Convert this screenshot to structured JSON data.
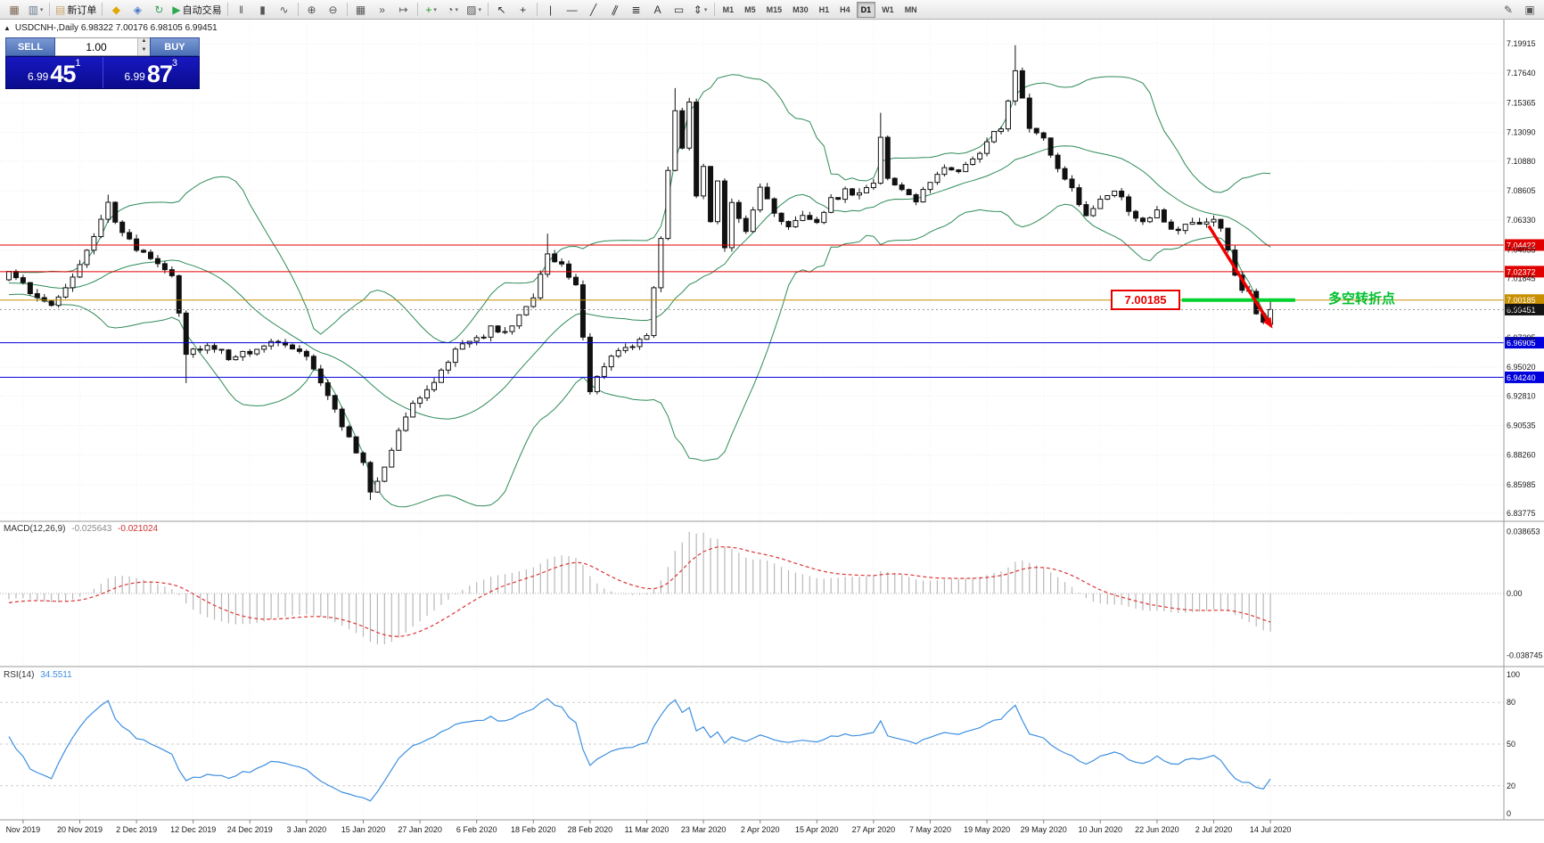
{
  "toolbar": {
    "items": [
      {
        "name": "new-chart-icon",
        "glyph": "▦",
        "color": "#7a6450"
      },
      {
        "name": "profiles-icon",
        "glyph": "▥",
        "color": "#6a7a8a",
        "caret": true
      },
      {
        "sep": true
      },
      {
        "name": "new-order-button",
        "glyph": "▤",
        "color": "#caa46a",
        "label": "新订单"
      },
      {
        "sep": true
      },
      {
        "name": "metaeditor-icon",
        "glyph": "◆",
        "color": "#e0a800"
      },
      {
        "name": "options-icon",
        "glyph": "◈",
        "color": "#4878c8"
      },
      {
        "name": "refresh-icon",
        "glyph": "↻",
        "color": "#3aa060"
      },
      {
        "name": "auto-trading-button",
        "glyph": "▶",
        "color": "#2fa84f",
        "label": "自动交易"
      },
      {
        "sep": true
      },
      {
        "name": "bar-chart-icon",
        "glyph": "‖",
        "color": "#555555"
      },
      {
        "name": "candlestick-icon",
        "glyph": "▮",
        "color": "#555555"
      },
      {
        "name": "line-chart-icon",
        "glyph": "∿",
        "color": "#555555"
      },
      {
        "sep": true
      },
      {
        "name": "zoom-in-icon",
        "glyph": "⊕",
        "color": "#555555"
      },
      {
        "name": "zoom-out-icon",
        "glyph": "⊖",
        "color": "#555555"
      },
      {
        "sep": true
      },
      {
        "name": "tile-windows-icon",
        "glyph": "▦",
        "color": "#555555"
      },
      {
        "name": "auto-scroll-icon",
        "glyph": "»",
        "color": "#555555"
      },
      {
        "name": "chart-shift-icon",
        "glyph": "↦",
        "color": "#555555"
      },
      {
        "sep": true
      },
      {
        "name": "indicators-icon",
        "glyph": "+",
        "color": "#18a018",
        "caret": true
      },
      {
        "name": "periods-icon",
        "glyph": "◔",
        "color": "#555555",
        "caret": true
      },
      {
        "name": "templates-icon",
        "glyph": "▨",
        "color": "#555555",
        "caret": true
      },
      {
        "sep": true
      },
      {
        "name": "cursor-icon",
        "glyph": "↖",
        "color": "#333333"
      },
      {
        "name": "crosshair-icon",
        "glyph": "+",
        "color": "#333333"
      },
      {
        "sep": true
      },
      {
        "name": "vertical-line-icon",
        "glyph": "|",
        "color": "#333333"
      },
      {
        "name": "horizontal-line-icon",
        "glyph": "―",
        "color": "#333333"
      },
      {
        "name": "trendline-icon",
        "glyph": "╱",
        "color": "#333333"
      },
      {
        "name": "channel-icon",
        "glyph": "∥",
        "color": "#333333",
        "rotate": true
      },
      {
        "name": "fibonacci-icon",
        "glyph": "≣",
        "color": "#333333"
      },
      {
        "name": "text-icon",
        "glyph": "A",
        "color": "#333333"
      },
      {
        "name": "text-label-icon",
        "glyph": "▭",
        "color": "#333333"
      },
      {
        "name": "arrows-icon",
        "glyph": "⇕",
        "color": "#333333",
        "caret": true
      },
      {
        "sep": true
      }
    ],
    "timeframes": [
      {
        "label": "M1"
      },
      {
        "label": "M5"
      },
      {
        "label": "M15"
      },
      {
        "label": "M30"
      },
      {
        "label": "H1"
      },
      {
        "label": "H4"
      },
      {
        "label": "D1",
        "active": true
      },
      {
        "label": "W1"
      },
      {
        "label": "MN"
      }
    ],
    "right_items": [
      {
        "name": "pencil-icon",
        "glyph": "✎",
        "color": "#555555"
      },
      {
        "name": "panels-icon",
        "glyph": "▣",
        "color": "#555555"
      }
    ]
  },
  "symbol_line": {
    "collapse_glyph": "▲",
    "text": "USDCNH-,Daily  6.98322 7.00176 6.98105 6.99451"
  },
  "one_click": {
    "sell_label": "SELL",
    "buy_label": "BUY",
    "lot": "1.00",
    "sell_price_prefix": "6.99",
    "sell_price_big": "45",
    "sell_price_sup": "1",
    "buy_price_prefix": "6.99",
    "buy_price_big": "87",
    "buy_price_sup": "3"
  },
  "chart_data": {
    "type": "candlestick",
    "symbol": "USDCNH-",
    "period": "Daily",
    "current_ohlc": {
      "open": 6.98322,
      "high": 7.00176,
      "low": 6.98105,
      "close": 6.99451
    },
    "price_axis_labels": [
      "7.19915",
      "7.17640",
      "7.15365",
      "7.13090",
      "7.10880",
      "7.08605",
      "7.06330",
      "7.04055",
      "7.01845",
      "6.99570",
      "6.97295",
      "6.95020",
      "6.92810",
      "6.90535",
      "6.88260",
      "6.85985",
      "6.83775"
    ],
    "date_labels": [
      "Nov 2019",
      "20 Nov 2019",
      "2 Dec 2019",
      "12 Dec 2019",
      "24 Dec 2019",
      "3 Jan 2020",
      "15 Jan 2020",
      "27 Jan 2020",
      "6 Feb 2020",
      "18 Feb 2020",
      "28 Feb 2020",
      "11 Mar 2020",
      "23 Mar 2020",
      "2 Apr 2020",
      "15 Apr 2020",
      "27 Apr 2020",
      "7 May 2020",
      "19 May 2020",
      "29 May 2020",
      "10 Jun 2020",
      "22 Jun 2020",
      "2 Jul 2020",
      "14 Jul 2020"
    ],
    "first_label_index": 2,
    "label_step": 8,
    "candles": {
      "start": -40,
      "end": 178,
      "seed": 20200714,
      "noise_close": 0.0028,
      "noise_wick": 0.0036,
      "last_ohlc": [
        6.98322,
        7.00176,
        6.98105,
        6.99451
      ],
      "spikes": {
        "14": {
          "high": 7.083
        },
        "25": {
          "low": 6.938
        },
        "51": {
          "low": 6.848
        },
        "76": {
          "high": 7.053
        },
        "94": {
          "high": 7.165
        },
        "123": {
          "high": 7.146
        },
        "142": {
          "high": 7.198
        }
      },
      "anchors": [
        [
          -40,
          7.05
        ],
        [
          -32,
          7.042
        ],
        [
          -24,
          7.03
        ],
        [
          -16,
          7.018
        ],
        [
          -8,
          7.008
        ],
        [
          -3,
          7.016
        ],
        [
          0,
          7.022
        ],
        [
          3,
          7.008
        ],
        [
          6,
          6.998
        ],
        [
          9,
          7.018
        ],
        [
          12,
          7.048
        ],
        [
          14,
          7.076
        ],
        [
          16,
          7.052
        ],
        [
          18,
          7.042
        ],
        [
          21,
          7.032
        ],
        [
          23,
          7.022
        ],
        [
          25,
          6.962
        ],
        [
          28,
          6.968
        ],
        [
          31,
          6.958
        ],
        [
          34,
          6.962
        ],
        [
          37,
          6.97
        ],
        [
          40,
          6.964
        ],
        [
          42,
          6.956
        ],
        [
          44,
          6.938
        ],
        [
          46,
          6.918
        ],
        [
          48,
          6.895
        ],
        [
          50,
          6.878
        ],
        [
          51,
          6.853
        ],
        [
          53,
          6.872
        ],
        [
          55,
          6.902
        ],
        [
          57,
          6.922
        ],
        [
          59,
          6.932
        ],
        [
          62,
          6.956
        ],
        [
          64,
          6.968
        ],
        [
          66,
          6.972
        ],
        [
          68,
          6.98
        ],
        [
          70,
          6.976
        ],
        [
          72,
          6.99
        ],
        [
          74,
          7.003
        ],
        [
          76,
          7.04
        ],
        [
          78,
          7.028
        ],
        [
          80,
          7.016
        ],
        [
          82,
          6.934
        ],
        [
          84,
          6.95
        ],
        [
          86,
          6.962
        ],
        [
          88,
          6.966
        ],
        [
          90,
          6.973
        ],
        [
          92,
          7.052
        ],
        [
          94,
          7.15
        ],
        [
          95,
          7.118
        ],
        [
          96,
          7.152
        ],
        [
          97,
          7.082
        ],
        [
          98,
          7.106
        ],
        [
          99,
          7.062
        ],
        [
          100,
          7.092
        ],
        [
          101,
          7.044
        ],
        [
          102,
          7.076
        ],
        [
          104,
          7.056
        ],
        [
          106,
          7.088
        ],
        [
          108,
          7.07
        ],
        [
          110,
          7.058
        ],
        [
          112,
          7.068
        ],
        [
          114,
          7.062
        ],
        [
          116,
          7.078
        ],
        [
          118,
          7.086
        ],
        [
          120,
          7.082
        ],
        [
          122,
          7.09
        ],
        [
          123,
          7.128
        ],
        [
          124,
          7.096
        ],
        [
          126,
          7.086
        ],
        [
          128,
          7.078
        ],
        [
          130,
          7.092
        ],
        [
          132,
          7.104
        ],
        [
          134,
          7.098
        ],
        [
          136,
          7.112
        ],
        [
          138,
          7.122
        ],
        [
          140,
          7.136
        ],
        [
          142,
          7.176
        ],
        [
          143,
          7.158
        ],
        [
          144,
          7.132
        ],
        [
          146,
          7.128
        ],
        [
          148,
          7.102
        ],
        [
          150,
          7.088
        ],
        [
          152,
          7.066
        ],
        [
          154,
          7.078
        ],
        [
          156,
          7.088
        ],
        [
          158,
          7.072
        ],
        [
          160,
          7.062
        ],
        [
          162,
          7.07
        ],
        [
          164,
          7.056
        ],
        [
          166,
          7.06
        ],
        [
          168,
          7.058
        ],
        [
          170,
          7.062
        ],
        [
          171,
          7.057
        ],
        [
          172,
          7.04
        ],
        [
          173,
          7.022
        ],
        [
          174,
          7.011
        ],
        [
          175,
          7.007
        ],
        [
          176,
          6.992
        ],
        [
          177,
          6.987
        ],
        [
          178,
          6.994
        ]
      ]
    },
    "bollinger": {
      "period": 20,
      "deviation": 2,
      "color": "#2e8b57"
    },
    "hlines": [
      {
        "price": 7.04422,
        "color": "#e00000"
      },
      {
        "price": 7.02372,
        "color": "#e00000"
      },
      {
        "price": 7.00185,
        "color": "#c88f00"
      },
      {
        "price": 6.96905,
        "color": "#0000dc"
      },
      {
        "price": 6.9424,
        "color": "#0000dc"
      }
    ],
    "bid": {
      "price": 6.99451,
      "badge_color": "#141414"
    },
    "macd": {
      "name": "MACD(12,26,9)",
      "value_main": "-0.025643",
      "value_signal": "-0.021024",
      "scale_top": "0.038653",
      "scale_zero": "0.00",
      "scale_bottom": "-0.038745",
      "histogram_color": "#b8b8b8",
      "signal_color": "#dd3333"
    },
    "rsi": {
      "name": "RSI(14)",
      "value": "34.5511",
      "levels": [
        100,
        80,
        50,
        20,
        0
      ],
      "line_color": "#3d8fe0"
    },
    "annotation": {
      "label_text": "7.00185",
      "note_text": "多空转折点",
      "note_color": "#00c030",
      "segment": {
        "price": 7.00185,
        "i1": 165.5,
        "i2": 181.5,
        "color": "#00d22e"
      },
      "arrow": {
        "i1": 169.3,
        "p1": 7.059,
        "i2": 178.3,
        "p2": 6.98,
        "color": "#f00000"
      }
    }
  }
}
